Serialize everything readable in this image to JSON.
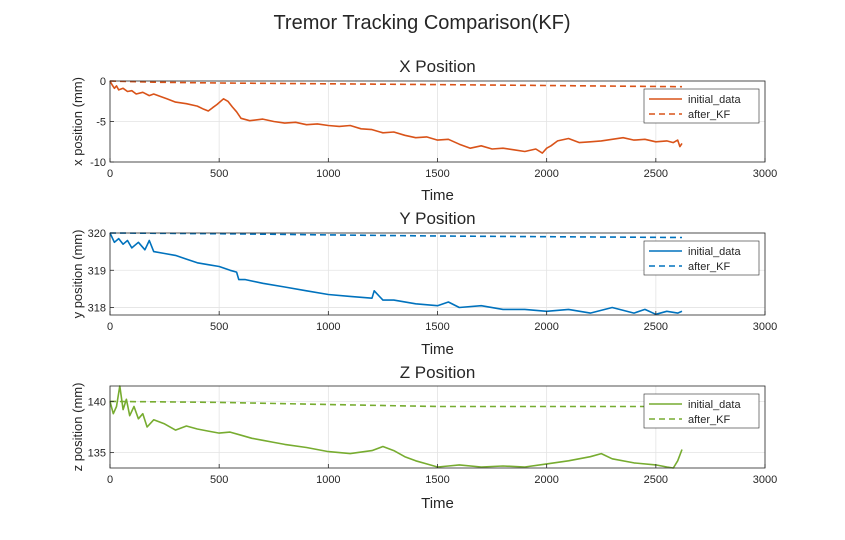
{
  "figure": {
    "title": "Tremor Tracking Comparison(KF)"
  },
  "chart_data": [
    {
      "type": "line",
      "title": "X Position",
      "xlabel": "Time",
      "ylabel": "x position (mm)",
      "xlim": [
        0,
        3000
      ],
      "ylim": [
        -10,
        0
      ],
      "xticks": [
        0,
        500,
        1000,
        1500,
        2000,
        2500,
        3000
      ],
      "yticks": [
        0,
        -5,
        -10
      ],
      "grid": true,
      "legend_position": "top-right",
      "series": [
        {
          "name": "initial_data",
          "color": "#D95319",
          "style": "solid",
          "x": [
            0,
            10,
            20,
            30,
            40,
            60,
            80,
            100,
            120,
            150,
            180,
            200,
            230,
            260,
            300,
            350,
            400,
            430,
            450,
            470,
            490,
            520,
            540,
            560,
            580,
            600,
            640,
            700,
            750,
            800,
            850,
            900,
            950,
            1000,
            1050,
            1100,
            1150,
            1200,
            1250,
            1300,
            1350,
            1400,
            1450,
            1500,
            1550,
            1600,
            1650,
            1700,
            1750,
            1800,
            1850,
            1900,
            1950,
            1980,
            2000,
            2020,
            2050,
            2100,
            2150,
            2200,
            2250,
            2300,
            2350,
            2400,
            2450,
            2500,
            2550,
            2580,
            2600,
            2610,
            2620
          ],
          "y": [
            0.0,
            -0.5,
            -0.9,
            -0.6,
            -1.1,
            -0.9,
            -1.3,
            -1.2,
            -1.6,
            -1.4,
            -1.8,
            -1.6,
            -1.9,
            -2.2,
            -2.6,
            -2.8,
            -3.1,
            -3.5,
            -3.7,
            -3.3,
            -2.9,
            -2.2,
            -2.5,
            -3.2,
            -3.8,
            -4.6,
            -4.9,
            -4.7,
            -5.0,
            -5.2,
            -5.1,
            -5.4,
            -5.3,
            -5.5,
            -5.6,
            -5.5,
            -5.9,
            -6.0,
            -6.4,
            -6.3,
            -6.7,
            -7.0,
            -6.9,
            -7.3,
            -7.2,
            -7.8,
            -8.3,
            -8.0,
            -8.4,
            -8.3,
            -8.5,
            -8.7,
            -8.4,
            -8.9,
            -8.3,
            -8.0,
            -7.4,
            -7.1,
            -7.6,
            -7.5,
            -7.4,
            -7.2,
            -7.0,
            -7.3,
            -7.2,
            -7.5,
            -7.4,
            -7.6,
            -7.3,
            -8.1,
            -7.7
          ]
        },
        {
          "name": "after_KF",
          "color": "#D95319",
          "style": "dashed",
          "x": [
            0,
            200,
            500,
            1000,
            1500,
            2000,
            2200,
            2400,
            2620
          ],
          "y": [
            0.0,
            -0.15,
            -0.25,
            -0.35,
            -0.45,
            -0.55,
            -0.6,
            -0.65,
            -0.7
          ]
        }
      ]
    },
    {
      "type": "line",
      "title": "Y Position",
      "xlabel": "Time",
      "ylabel": "y position (mm)",
      "xlim": [
        0,
        3000
      ],
      "ylim": [
        317.8,
        320.0
      ],
      "xticks": [
        0,
        500,
        1000,
        1500,
        2000,
        2500,
        3000
      ],
      "yticks": [
        320,
        319,
        318
      ],
      "grid": true,
      "legend_position": "top-right",
      "series": [
        {
          "name": "initial_data",
          "color": "#0072BD",
          "style": "solid",
          "x": [
            0,
            20,
            40,
            60,
            80,
            100,
            130,
            160,
            180,
            200,
            250,
            300,
            350,
            400,
            450,
            500,
            550,
            580,
            590,
            620,
            700,
            800,
            900,
            1000,
            1100,
            1200,
            1210,
            1250,
            1300,
            1400,
            1500,
            1550,
            1600,
            1700,
            1800,
            1900,
            2000,
            2100,
            2200,
            2300,
            2400,
            2450,
            2500,
            2550,
            2600,
            2620
          ],
          "y": [
            320.0,
            319.75,
            319.85,
            319.7,
            319.8,
            319.6,
            319.75,
            319.55,
            319.8,
            319.5,
            319.45,
            319.4,
            319.3,
            319.2,
            319.15,
            319.1,
            319.0,
            318.95,
            318.75,
            318.75,
            318.65,
            318.55,
            318.45,
            318.35,
            318.3,
            318.25,
            318.45,
            318.2,
            318.2,
            318.1,
            318.05,
            318.15,
            318.0,
            318.05,
            317.95,
            317.95,
            317.9,
            317.95,
            317.85,
            318.0,
            317.85,
            317.95,
            317.82,
            317.9,
            317.85,
            317.9
          ]
        },
        {
          "name": "after_KF",
          "color": "#0072BD",
          "style": "dashed",
          "x": [
            0,
            500,
            1000,
            1500,
            2000,
            2620
          ],
          "y": [
            320.0,
            319.98,
            319.95,
            319.92,
            319.9,
            319.88
          ]
        }
      ]
    },
    {
      "type": "line",
      "title": "Z Position",
      "xlabel": "Time",
      "ylabel": "z position (mm)",
      "xlim": [
        0,
        3000
      ],
      "ylim": [
        133.5,
        141.5
      ],
      "xticks": [
        0,
        500,
        1000,
        1500,
        2000,
        2500,
        3000
      ],
      "yticks": [
        140,
        135
      ],
      "grid": true,
      "legend_position": "top-right",
      "series": [
        {
          "name": "initial_data",
          "color": "#77AC30",
          "style": "solid",
          "x": [
            0,
            15,
            30,
            45,
            60,
            75,
            90,
            110,
            130,
            150,
            170,
            200,
            250,
            300,
            350,
            400,
            450,
            500,
            550,
            600,
            650,
            700,
            750,
            800,
            900,
            1000,
            1100,
            1200,
            1250,
            1300,
            1350,
            1400,
            1450,
            1500,
            1550,
            1600,
            1700,
            1800,
            1900,
            2000,
            2100,
            2200,
            2250,
            2300,
            2400,
            2500,
            2550,
            2580,
            2600,
            2620
          ],
          "y": [
            140.0,
            138.8,
            139.5,
            141.5,
            139.2,
            140.2,
            138.6,
            139.5,
            138.3,
            138.8,
            137.5,
            138.2,
            137.8,
            137.2,
            137.6,
            137.3,
            137.1,
            136.9,
            137.0,
            136.7,
            136.4,
            136.2,
            136.0,
            135.8,
            135.5,
            135.1,
            134.9,
            135.2,
            135.6,
            135.2,
            134.6,
            134.2,
            133.9,
            133.6,
            133.7,
            133.8,
            133.6,
            133.7,
            133.6,
            133.9,
            134.2,
            134.6,
            134.9,
            134.4,
            134.0,
            133.8,
            133.6,
            133.5,
            134.2,
            135.3
          ]
        },
        {
          "name": "after_KF",
          "color": "#77AC30",
          "style": "dashed",
          "x": [
            0,
            500,
            1000,
            1500,
            2000,
            2620
          ],
          "y": [
            140.0,
            139.9,
            139.7,
            139.5,
            139.5,
            139.5
          ]
        }
      ]
    }
  ]
}
